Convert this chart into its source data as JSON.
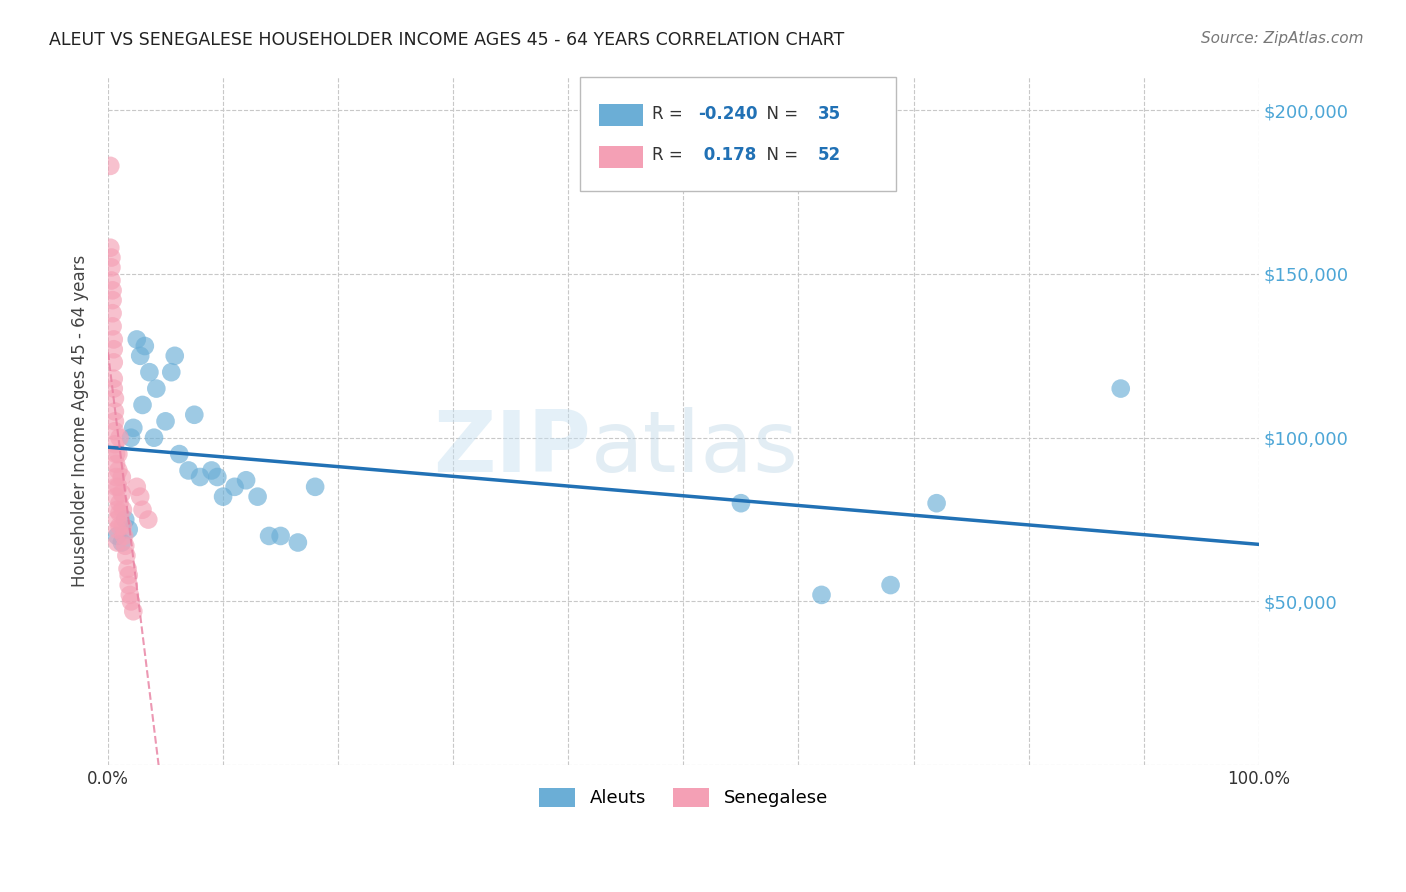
{
  "title": "ALEUT VS SENEGALESE HOUSEHOLDER INCOME AGES 45 - 64 YEARS CORRELATION CHART",
  "source": "Source: ZipAtlas.com",
  "ylabel": "Householder Income Ages 45 - 64 years",
  "xlim": [
    0,
    1.0
  ],
  "ylim": [
    0,
    210000
  ],
  "yticks": [
    0,
    50000,
    100000,
    150000,
    200000
  ],
  "ytick_labels": [
    "",
    "$50,000",
    "$100,000",
    "$150,000",
    "$200,000"
  ],
  "aleut_R": -0.24,
  "aleut_N": 35,
  "senegalese_R": 0.178,
  "senegalese_N": 52,
  "aleut_color": "#6baed6",
  "senegalese_color": "#f4a0b5",
  "aleut_trend_color": "#2171b5",
  "senegalese_trend_color": "#e87fa0",
  "background_color": "#ffffff",
  "grid_color": "#c8c8c8",
  "watermark": "ZIPatlas",
  "aleut_x": [
    0.008,
    0.012,
    0.015,
    0.018,
    0.02,
    0.022,
    0.025,
    0.028,
    0.03,
    0.032,
    0.036,
    0.04,
    0.042,
    0.05,
    0.055,
    0.058,
    0.062,
    0.07,
    0.075,
    0.08,
    0.09,
    0.095,
    0.1,
    0.11,
    0.12,
    0.13,
    0.14,
    0.15,
    0.165,
    0.18,
    0.55,
    0.62,
    0.68,
    0.72,
    0.88
  ],
  "aleut_y": [
    70000,
    68000,
    75000,
    72000,
    100000,
    103000,
    130000,
    125000,
    110000,
    128000,
    120000,
    100000,
    115000,
    105000,
    120000,
    125000,
    95000,
    90000,
    107000,
    88000,
    90000,
    88000,
    82000,
    85000,
    87000,
    82000,
    70000,
    70000,
    68000,
    85000,
    80000,
    52000,
    55000,
    80000,
    115000
  ],
  "senegalese_x": [
    0.002,
    0.002,
    0.003,
    0.003,
    0.003,
    0.004,
    0.004,
    0.004,
    0.004,
    0.005,
    0.005,
    0.005,
    0.005,
    0.005,
    0.006,
    0.006,
    0.006,
    0.006,
    0.006,
    0.007,
    0.007,
    0.007,
    0.007,
    0.007,
    0.008,
    0.008,
    0.008,
    0.008,
    0.009,
    0.009,
    0.009,
    0.01,
    0.01,
    0.01,
    0.012,
    0.012,
    0.013,
    0.013,
    0.014,
    0.015,
    0.016,
    0.017,
    0.018,
    0.018,
    0.019,
    0.02,
    0.022,
    0.025,
    0.028,
    0.03,
    0.035,
    0.01
  ],
  "senegalese_y": [
    183000,
    158000,
    155000,
    152000,
    148000,
    145000,
    142000,
    138000,
    134000,
    130000,
    127000,
    123000,
    118000,
    115000,
    112000,
    108000,
    105000,
    102000,
    98000,
    95000,
    92000,
    88000,
    85000,
    82000,
    78000,
    75000,
    72000,
    68000,
    95000,
    90000,
    85000,
    80000,
    77000,
    73000,
    88000,
    83000,
    78000,
    73000,
    70000,
    67000,
    64000,
    60000,
    58000,
    55000,
    52000,
    50000,
    47000,
    85000,
    82000,
    78000,
    75000,
    100000
  ]
}
